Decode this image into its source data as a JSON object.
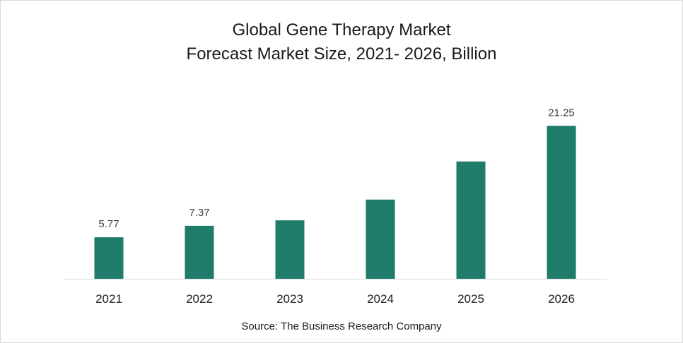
{
  "chart_data": {
    "type": "bar",
    "title": "Global Gene Therapy Market",
    "subtitle": "Forecast Market Size, 2021- 2026, Billion",
    "categories": [
      "2021",
      "2022",
      "2023",
      "2024",
      "2025",
      "2026"
    ],
    "values": [
      5.77,
      7.37,
      8.12,
      11.0,
      16.3,
      21.25
    ],
    "data_labels": [
      "5.77",
      "7.37",
      "",
      "",
      "",
      "21.25"
    ],
    "xlabel": "",
    "ylabel": "",
    "ylim": [
      0,
      25.5
    ],
    "grid": false,
    "legend": "none",
    "bar_color": "#1f7b6a",
    "source": "Source: The Business Research Company"
  }
}
